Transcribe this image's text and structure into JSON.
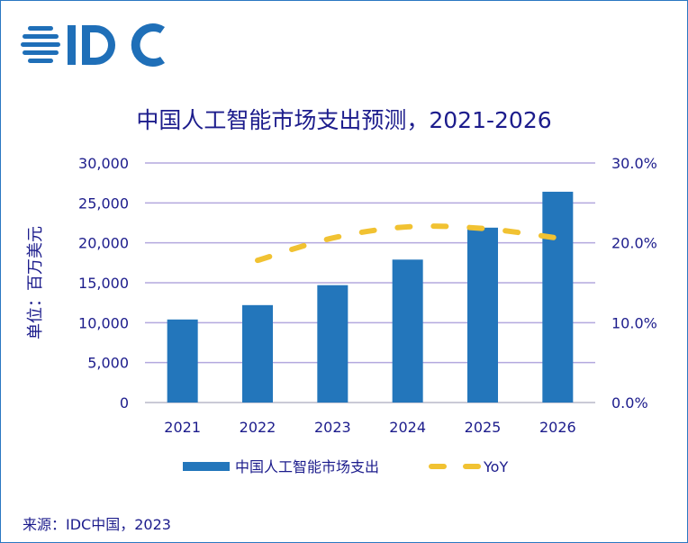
{
  "logo": {
    "text": "IDC",
    "color": "#1f6fb8"
  },
  "source": "来源：IDC中国，2023",
  "chart_data": {
    "type": "bar",
    "title": "中国人工智能市场支出预测，2021-2026",
    "ylabel": "单位：百万美元",
    "categories": [
      "2021",
      "2022",
      "2023",
      "2024",
      "2025",
      "2026"
    ],
    "ylim": [
      0,
      30000
    ],
    "y2lim": [
      0,
      0.3
    ],
    "yticks": [
      "0",
      "5,000",
      "10,000",
      "15,000",
      "20,000",
      "25,000",
      "30,000"
    ],
    "y2ticks": [
      "0.0%",
      "10.0%",
      "20.0%",
      "30.0%"
    ],
    "grid": true,
    "legend_position": "bottom",
    "series": [
      {
        "name": "中国人工智能市场支出",
        "type": "bar",
        "axis": "left",
        "color": "#2376bb",
        "values": [
          10400,
          12200,
          14700,
          17900,
          21900,
          26400
        ]
      },
      {
        "name": "YoY",
        "type": "line",
        "style": "dashed",
        "axis": "right",
        "color": "#f1c232",
        "values": [
          null,
          0.178,
          0.206,
          0.22,
          0.218,
          0.206
        ]
      }
    ]
  }
}
